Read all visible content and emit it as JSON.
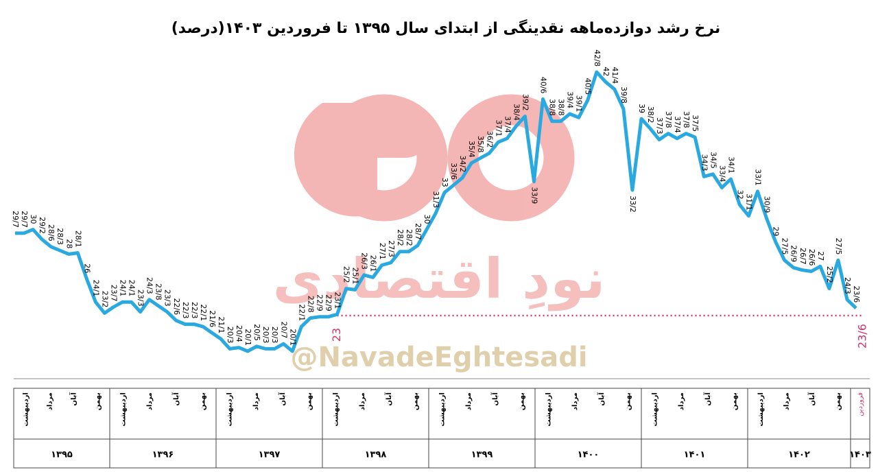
{
  "chart_data": {
    "type": "line",
    "title": "نرخ رشد دوازده‌ماهه نقدینگی از ابتدای  سال ۱۳۹۵ تا فروردین ۱۴۰۳(درصد)",
    "watermark": "نودِ اقتصادی",
    "handle": "@NavadeEghtesadi",
    "series": [
      {
        "color": "#2aa9e0",
        "values": [
          29.7,
          29.7,
          30,
          29.2,
          28.6,
          28.3,
          28,
          28.1,
          26,
          24.1,
          23.2,
          23.7,
          24.1,
          24.1,
          23.3,
          24.3,
          23.8,
          23.3,
          22.6,
          22.3,
          22.3,
          22.1,
          21.6,
          21.1,
          20.3,
          20.4,
          20.1,
          20.5,
          20.3,
          20.3,
          20.7,
          20.1,
          22.1,
          22.8,
          22.9,
          22.9,
          23.1,
          25.2,
          25.1,
          26.3,
          26.1,
          27.1,
          27.3,
          28.2,
          28.2,
          28.7,
          30,
          31.3,
          33,
          33.6,
          34.2,
          35.4,
          35.8,
          36.2,
          37.1,
          37.4,
          38.4,
          39.2,
          33.9,
          40.6,
          38.8,
          38.8,
          39.4,
          39.1,
          40.5,
          42.8,
          42,
          41.4,
          39.8,
          33.2,
          39,
          38.2,
          37.3,
          37.8,
          37.4,
          37.8,
          37.5,
          34.3,
          34.5,
          33.4,
          34.1,
          32,
          31.1,
          33.1,
          30.9,
          29,
          27.5,
          26.9,
          26.7,
          26.6,
          27,
          25.2,
          27.5,
          24.3,
          23.6
        ],
        "value_labels": [
          "29/7",
          "29/7",
          "30",
          "29/2",
          "28/6",
          "28/3",
          "28",
          "28/1",
          "26",
          "24/1",
          "23/2",
          "23/7",
          "24/1",
          "24/1",
          "23/3",
          "24/3",
          "23/8",
          "23/3",
          "22/6",
          "22/3",
          "22/3",
          "22/1",
          "21/6",
          "21/1",
          "20/3",
          "20/4",
          "20/1",
          "20/5",
          "20/3",
          "20/3",
          "20/7",
          "20/1",
          "22/1",
          "22/8",
          "22/9",
          "22/9",
          "23/1",
          "25/2",
          "25/1",
          "26/3",
          "26/1",
          "27/1",
          "27/3",
          "28/2",
          "28/2",
          "28/7",
          "30",
          "31/3",
          "33",
          "33/6",
          "34/2",
          "35/4",
          "35/8",
          "36/2",
          "37/1",
          "37/4",
          "38/4",
          "39/2",
          "33/9",
          "40/6",
          "38/8",
          "38/8",
          "39/4",
          "39/1",
          "40/5",
          "42/8",
          "42",
          "41/4",
          "39/8",
          "33/2",
          "39",
          "38/2",
          "37/3",
          "37/8",
          "37/4",
          "37/8",
          "37/5",
          "34/3",
          "34/5",
          "33/4",
          "34/1",
          "32",
          "31/1",
          "33/1",
          "30/9",
          "29",
          "27/5",
          "26/9",
          "26/7",
          "26/6",
          "27",
          "25/2",
          "27/5",
          "24/3",
          "23/6"
        ]
      }
    ],
    "reference_line": {
      "value": 23,
      "color": "#d6336c"
    },
    "years": [
      "۱۳۹۵",
      "۱۳۹۶",
      "۱۳۹۷",
      "۱۳۹۸",
      "۱۳۹۹",
      "۱۴۰۰",
      "۱۴۰۱",
      "۱۴۰۲",
      "۱۴۰۳"
    ],
    "months": [
      "اردیبهشت",
      "مرداد",
      "آبان",
      "بهمن"
    ],
    "last_month": "فروردین"
  }
}
